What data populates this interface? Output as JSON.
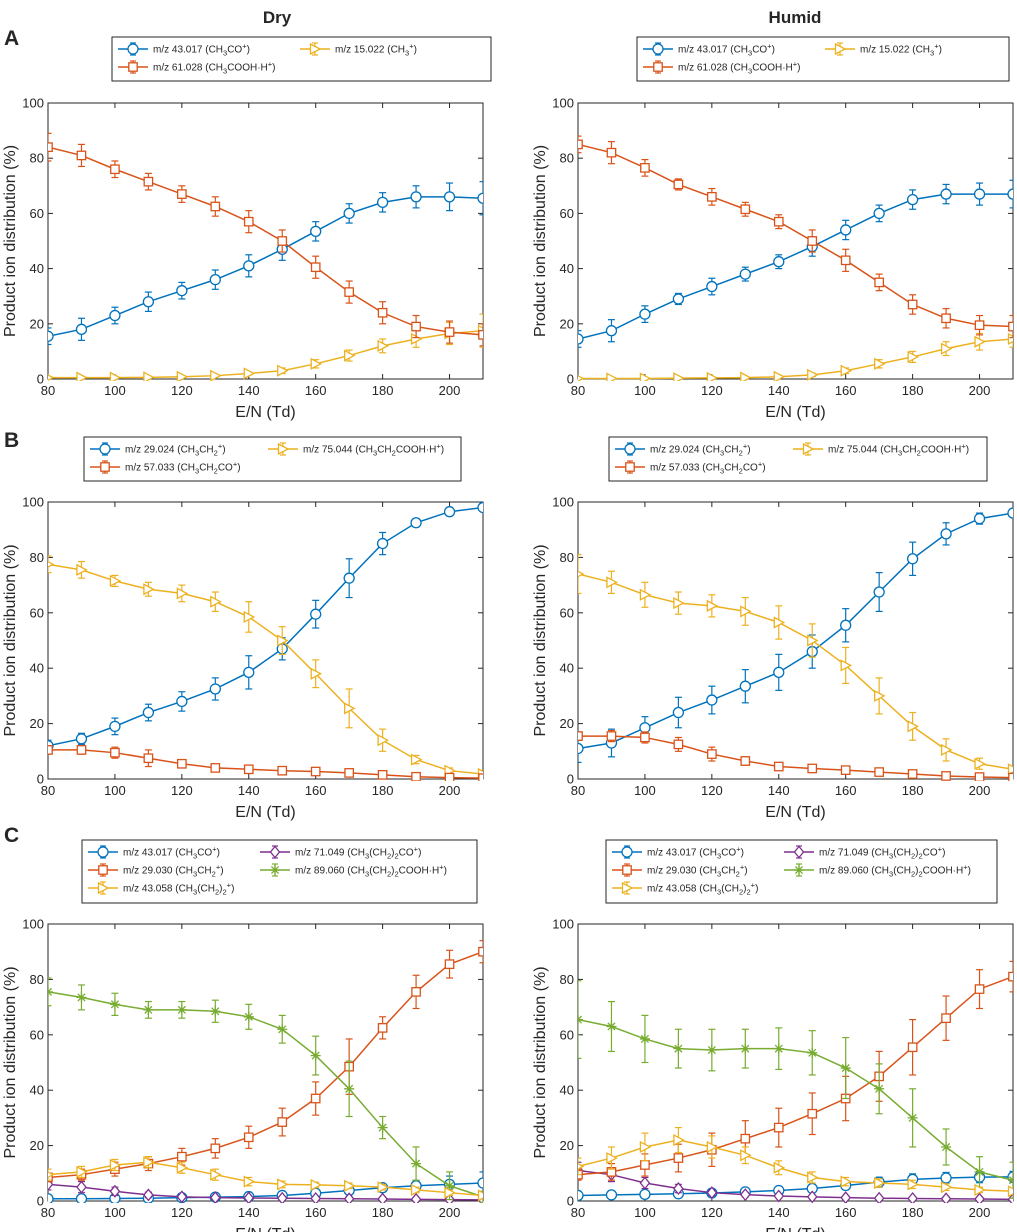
{
  "figure": {
    "col_titles": [
      "Dry",
      "Humid"
    ],
    "row_labels": [
      "A",
      "B",
      "C"
    ],
    "xlabel": "E/N (Td)",
    "ylabel": "Product ion distribution (%)",
    "colors": {
      "blue": "#0072BD",
      "orange": "#D95319",
      "yellow": "#EDB120",
      "purple": "#7E2F8E",
      "green": "#77AC30"
    }
  },
  "chart_data": [
    {
      "type": "line",
      "panel": "A",
      "condition": "Dry",
      "title": "",
      "xlabel": "E/N (Td)",
      "ylabel": "Product ion distribution (%)",
      "xlim": [
        80,
        210
      ],
      "ylim": [
        0,
        100
      ],
      "xticks": [
        80,
        100,
        120,
        140,
        160,
        180,
        200
      ],
      "yticks": [
        0,
        20,
        40,
        60,
        80,
        100
      ],
      "x": [
        80,
        90,
        100,
        110,
        120,
        130,
        140,
        150,
        160,
        170,
        180,
        190,
        200,
        210
      ],
      "legend": {
        "columns": 2,
        "placement": "top"
      },
      "series": [
        {
          "name": "m/z 43.017 (CH₃CO⁺)",
          "color": "#0072BD",
          "marker": "circle",
          "values": [
            15.5,
            18,
            23,
            28,
            32,
            36,
            41,
            47,
            53.5,
            60,
            64,
            66,
            66,
            65.5
          ],
          "errors": [
            3,
            4,
            3,
            3.5,
            3,
            3.5,
            4,
            4,
            3.5,
            3.5,
            3.5,
            4,
            5,
            6
          ]
        },
        {
          "name": "m/z 15.022 (CH₃⁺)",
          "color": "#EDB120",
          "marker": "triangle-right",
          "values": [
            0.5,
            0.5,
            0.5,
            0.6,
            0.8,
            1.2,
            2,
            3,
            5.5,
            8.5,
            12,
            14.5,
            16.5,
            17.5
          ],
          "errors": [
            0.3,
            0.3,
            0.3,
            0.3,
            0.3,
            0.5,
            0.5,
            1,
            1.5,
            2,
            2.5,
            3,
            4,
            6
          ]
        },
        {
          "name": "m/z 61.028 (CH₃COOH·H⁺)",
          "color": "#D95319",
          "marker": "square",
          "values": [
            84,
            81,
            76,
            71.5,
            67,
            62.5,
            57,
            50,
            40.5,
            31.5,
            24,
            19,
            17,
            16
          ],
          "errors": [
            5,
            4,
            3,
            3,
            3,
            3.5,
            4,
            4,
            4,
            4,
            4,
            4,
            4,
            4
          ]
        }
      ]
    },
    {
      "type": "line",
      "panel": "A",
      "condition": "Humid",
      "title": "",
      "xlabel": "E/N (Td)",
      "ylabel": "Product ion distribution (%)",
      "xlim": [
        80,
        210
      ],
      "ylim": [
        0,
        100
      ],
      "xticks": [
        80,
        100,
        120,
        140,
        160,
        180,
        200
      ],
      "yticks": [
        0,
        20,
        40,
        60,
        80,
        100
      ],
      "x": [
        80,
        90,
        100,
        110,
        120,
        130,
        140,
        150,
        160,
        170,
        180,
        190,
        200,
        210
      ],
      "legend": {
        "columns": 2,
        "placement": "top"
      },
      "series": [
        {
          "name": "m/z 43.017 (CH₃CO⁺)",
          "color": "#0072BD",
          "marker": "circle",
          "values": [
            14.5,
            17.5,
            23.5,
            29,
            33.5,
            38,
            42.5,
            48,
            54,
            60,
            65,
            67,
            67,
            67
          ],
          "errors": [
            3,
            4,
            3,
            2,
            3,
            2.5,
            2.5,
            3.5,
            3.5,
            3,
            3.5,
            3.5,
            4,
            5
          ]
        },
        {
          "name": "m/z 15.022 (CH₃⁺)",
          "color": "#EDB120",
          "marker": "triangle-right",
          "values": [
            0.2,
            0.2,
            0.2,
            0.3,
            0.4,
            0.5,
            0.8,
            1.5,
            3,
            5.5,
            8,
            11,
            13.5,
            14.5
          ],
          "errors": [
            0.2,
            0.2,
            0.2,
            0.2,
            0.2,
            0.3,
            0.4,
            0.6,
            1,
            1.5,
            2,
            2.5,
            3,
            3
          ]
        },
        {
          "name": "m/z 61.028 (CH₃COOH·H⁺)",
          "color": "#D95319",
          "marker": "square",
          "values": [
            85,
            82,
            76.5,
            70.5,
            66,
            61.5,
            57,
            50,
            43,
            35,
            27,
            22,
            19.5,
            19
          ],
          "errors": [
            3,
            4,
            3,
            2,
            3,
            2.5,
            2.5,
            4,
            4,
            3,
            3.5,
            3.5,
            3.5,
            4
          ]
        }
      ]
    },
    {
      "type": "line",
      "panel": "B",
      "condition": "Dry",
      "title": "",
      "xlabel": "E/N (Td)",
      "ylabel": "Product ion distribution (%)",
      "xlim": [
        80,
        210
      ],
      "ylim": [
        0,
        100
      ],
      "xticks": [
        80,
        100,
        120,
        140,
        160,
        180,
        200
      ],
      "yticks": [
        0,
        20,
        40,
        60,
        80,
        100
      ],
      "x": [
        80,
        90,
        100,
        110,
        120,
        130,
        140,
        150,
        160,
        170,
        180,
        190,
        200,
        210
      ],
      "legend": {
        "columns": 2,
        "placement": "top"
      },
      "series": [
        {
          "name": "m/z 29.024 (CH₃CH₂⁺)",
          "color": "#0072BD",
          "marker": "circle",
          "values": [
            12,
            14.5,
            19,
            24,
            28,
            32.5,
            38.5,
            47,
            59.5,
            72.5,
            85,
            92.5,
            96.5,
            98
          ],
          "errors": [
            2,
            2,
            3,
            3,
            3.5,
            4,
            6,
            4,
            5,
            7,
            4,
            1.5,
            1,
            0.8
          ]
        },
        {
          "name": "m/z 75.044 (CH₃CH₂COOH·H⁺)",
          "color": "#EDB120",
          "marker": "triangle-right",
          "values": [
            77.5,
            75.5,
            71.5,
            68.5,
            67,
            64,
            58.5,
            50,
            38,
            25.5,
            14,
            7,
            3,
            1.8
          ],
          "errors": [
            3,
            3,
            2,
            2.5,
            3,
            3.5,
            5.5,
            5,
            5,
            7,
            4,
            1.5,
            1,
            0.6
          ]
        },
        {
          "name": "m/z 57.033 (CH₃CH₂CO⁺)",
          "color": "#D95319",
          "marker": "square",
          "values": [
            10.5,
            10.5,
            9.5,
            7.5,
            5.5,
            4,
            3.5,
            3,
            2.7,
            2.2,
            1.5,
            0.8,
            0.5,
            0.3
          ],
          "errors": [
            1.5,
            1.5,
            2,
            3,
            1.5,
            1,
            0.8,
            0.7,
            0.7,
            0.5,
            0.5,
            0.3,
            0.3,
            0.2
          ]
        }
      ]
    },
    {
      "type": "line",
      "panel": "B",
      "condition": "Humid",
      "title": "",
      "xlabel": "E/N (Td)",
      "ylabel": "Product ion distribution (%)",
      "xlim": [
        80,
        210
      ],
      "ylim": [
        0,
        100
      ],
      "xticks": [
        80,
        100,
        120,
        140,
        160,
        180,
        200
      ],
      "yticks": [
        0,
        20,
        40,
        60,
        80,
        100
      ],
      "x": [
        80,
        90,
        100,
        110,
        120,
        130,
        140,
        150,
        160,
        170,
        180,
        190,
        200,
        210
      ],
      "legend": {
        "columns": 2,
        "placement": "top"
      },
      "series": [
        {
          "name": "m/z 29.024 (CH₃CH₂⁺)",
          "color": "#0072BD",
          "marker": "circle",
          "values": [
            11,
            13,
            18.5,
            24,
            28.5,
            33.5,
            38.5,
            46,
            55.5,
            67.5,
            79.5,
            88.5,
            94,
            96
          ],
          "errors": [
            5,
            5,
            4,
            5.5,
            5,
            6,
            6.5,
            6,
            6,
            7,
            6,
            4,
            2,
            1
          ]
        },
        {
          "name": "m/z 75.044 (CH₃CH₂COOH·H⁺)",
          "color": "#EDB120",
          "marker": "triangle-right",
          "values": [
            74,
            71,
            66.5,
            63.5,
            62.5,
            60.5,
            56.5,
            50,
            41,
            30,
            19,
            10.5,
            5.5,
            3.5
          ],
          "errors": [
            7,
            4,
            4.5,
            4,
            4,
            5,
            6,
            6,
            6.5,
            6.5,
            5,
            4,
            2,
            1
          ]
        },
        {
          "name": "m/z 57.033 (CH₃CH₂CO⁺)",
          "color": "#D95319",
          "marker": "square",
          "values": [
            15.5,
            15.5,
            15,
            12.5,
            9,
            6.5,
            4.5,
            3.8,
            3.2,
            2.5,
            1.8,
            1.1,
            0.7,
            0.5
          ],
          "errors": [
            1.5,
            2,
            2,
            2.5,
            2.5,
            1.5,
            1,
            0.8,
            0.8,
            0.6,
            0.5,
            0.3,
            0.3,
            0.2
          ]
        }
      ]
    },
    {
      "type": "line",
      "panel": "C",
      "condition": "Dry",
      "title": "",
      "xlabel": "E/N (Td)",
      "ylabel": "Product ion distribution (%)",
      "xlim": [
        80,
        210
      ],
      "ylim": [
        0,
        100
      ],
      "xticks": [
        80,
        100,
        120,
        140,
        160,
        180,
        200
      ],
      "yticks": [
        0,
        20,
        40,
        60,
        80,
        100
      ],
      "x": [
        80,
        90,
        100,
        110,
        120,
        130,
        140,
        150,
        160,
        170,
        180,
        190,
        200,
        210
      ],
      "legend": {
        "columns": 2,
        "placement": "top"
      },
      "series": [
        {
          "name": "m/z 43.017 (CH₃CO⁺)",
          "color": "#0072BD",
          "marker": "circle",
          "values": [
            0.8,
            0.8,
            0.9,
            1,
            1.2,
            1.4,
            1.6,
            2,
            2.8,
            3.8,
            4.8,
            5.5,
            6,
            6.5
          ],
          "errors": [
            0.4,
            0.4,
            0.4,
            0.5,
            0.5,
            0.5,
            0.6,
            0.8,
            1,
            1.5,
            1.5,
            2,
            3,
            4
          ]
        },
        {
          "name": "m/z 71.049 (CH₃(CH₂)₂CO⁺)",
          "color": "#7E2F8E",
          "marker": "diamond",
          "values": [
            6,
            5,
            3.5,
            2.2,
            1.5,
            1.2,
            1.1,
            1,
            0.9,
            0.8,
            0.7,
            0.6,
            0.5,
            0.4
          ],
          "errors": [
            2,
            2,
            1.5,
            1,
            0.6,
            0.5,
            0.4,
            0.4,
            0.3,
            0.3,
            0.3,
            0.3,
            0.2,
            0.2
          ]
        },
        {
          "name": "m/z 29.030 (CH₃CH₂⁺)",
          "color": "#D95319",
          "marker": "square",
          "values": [
            8.5,
            9.5,
            11.5,
            13.5,
            16,
            19,
            23,
            28.5,
            37,
            48.5,
            62.5,
            75.5,
            85.5,
            90
          ],
          "errors": [
            1.5,
            2,
            2.5,
            2.5,
            3,
            3.5,
            4,
            5,
            6,
            10,
            4,
            6,
            5,
            4
          ]
        },
        {
          "name": "m/z 89.060 (CH₃(CH₂)₂COOH·H⁺)",
          "color": "#77AC30",
          "marker": "star",
          "values": [
            75.5,
            73.5,
            71,
            69,
            69,
            68.5,
            66.5,
            62,
            52.5,
            40.5,
            26.5,
            13.5,
            5.5,
            1.5
          ],
          "errors": [
            5,
            4.5,
            4,
            3,
            3,
            4,
            4.5,
            5,
            7,
            10,
            4,
            6,
            5,
            2
          ]
        },
        {
          "name": "m/z 43.058 (CH₃(CH₂)₂⁺)",
          "color": "#EDB120",
          "marker": "triangle-right",
          "values": [
            9.5,
            10.5,
            13,
            14,
            12,
            9.5,
            7,
            6,
            5.8,
            5.5,
            5,
            4,
            3,
            2
          ],
          "errors": [
            2,
            2,
            2,
            2,
            2,
            2,
            1.5,
            1.2,
            1,
            1,
            1,
            1,
            1,
            1
          ]
        }
      ]
    },
    {
      "type": "line",
      "panel": "C",
      "condition": "Humid",
      "title": "",
      "xlabel": "E/N (Td)",
      "ylabel": "Product ion distribution (%)",
      "xlim": [
        80,
        210
      ],
      "ylim": [
        0,
        100
      ],
      "xticks": [
        80,
        100,
        120,
        140,
        160,
        180,
        200
      ],
      "yticks": [
        0,
        20,
        40,
        60,
        80,
        100
      ],
      "x": [
        80,
        90,
        100,
        110,
        120,
        130,
        140,
        150,
        160,
        170,
        180,
        190,
        200,
        210
      ],
      "legend": {
        "columns": 2,
        "placement": "top"
      },
      "series": [
        {
          "name": "m/z 43.017 (CH₃CO⁺)",
          "color": "#0072BD",
          "marker": "circle",
          "values": [
            2,
            2.2,
            2.4,
            2.6,
            2.9,
            3.3,
            3.8,
            4.5,
            5.6,
            6.8,
            7.8,
            8.3,
            8.6,
            8.7
          ],
          "errors": [
            0.5,
            0.5,
            0.6,
            0.6,
            0.7,
            0.8,
            1,
            1.2,
            1.5,
            1.8,
            2,
            2,
            2,
            2
          ]
        },
        {
          "name": "m/z 71.049 (CH₃(CH₂)₂CO⁺)",
          "color": "#7E2F8E",
          "marker": "diamond",
          "values": [
            11,
            9.5,
            6.5,
            4.5,
            3,
            2.3,
            1.8,
            1.5,
            1.2,
            1,
            0.9,
            0.8,
            0.7,
            0.6
          ],
          "errors": [
            3,
            2.5,
            2,
            1.5,
            1,
            0.8,
            0.6,
            0.5,
            0.4,
            0.3,
            0.3,
            0.3,
            0.3,
            0.3
          ]
        },
        {
          "name": "m/z 29.030 (CH₃CH₂⁺)",
          "color": "#D95319",
          "marker": "square",
          "values": [
            9.5,
            10.5,
            13,
            15.5,
            18.5,
            22.5,
            26.5,
            31.5,
            37,
            45,
            55.5,
            66,
            76.5,
            81
          ],
          "errors": [
            2,
            3,
            4,
            5,
            6,
            6.5,
            7,
            7.5,
            8,
            9,
            10,
            8,
            7,
            5.5
          ]
        },
        {
          "name": "m/z 89.060 (CH₃(CH₂)₂COOH·H⁺)",
          "color": "#77AC30",
          "marker": "star",
          "values": [
            65.5,
            63,
            58.5,
            55,
            54.5,
            55,
            55,
            53.5,
            48,
            40.5,
            30,
            19.5,
            10.5,
            7.5
          ],
          "errors": [
            14,
            9,
            8.5,
            7,
            7.5,
            7,
            7.5,
            8,
            11,
            9,
            10.5,
            6.5,
            5.5,
            6.5
          ]
        },
        {
          "name": "m/z 43.058 (CH₃(CH₂)₂⁺)",
          "color": "#EDB120",
          "marker": "triangle-right",
          "values": [
            12.5,
            15.5,
            19.5,
            22,
            19.5,
            16.5,
            12,
            8.5,
            7,
            6.5,
            6,
            5,
            4,
            3.5
          ],
          "errors": [
            3,
            4,
            5,
            4.5,
            4,
            3,
            2.5,
            2,
            1.5,
            1.5,
            1.5,
            1.2,
            1,
            1
          ]
        }
      ]
    }
  ]
}
